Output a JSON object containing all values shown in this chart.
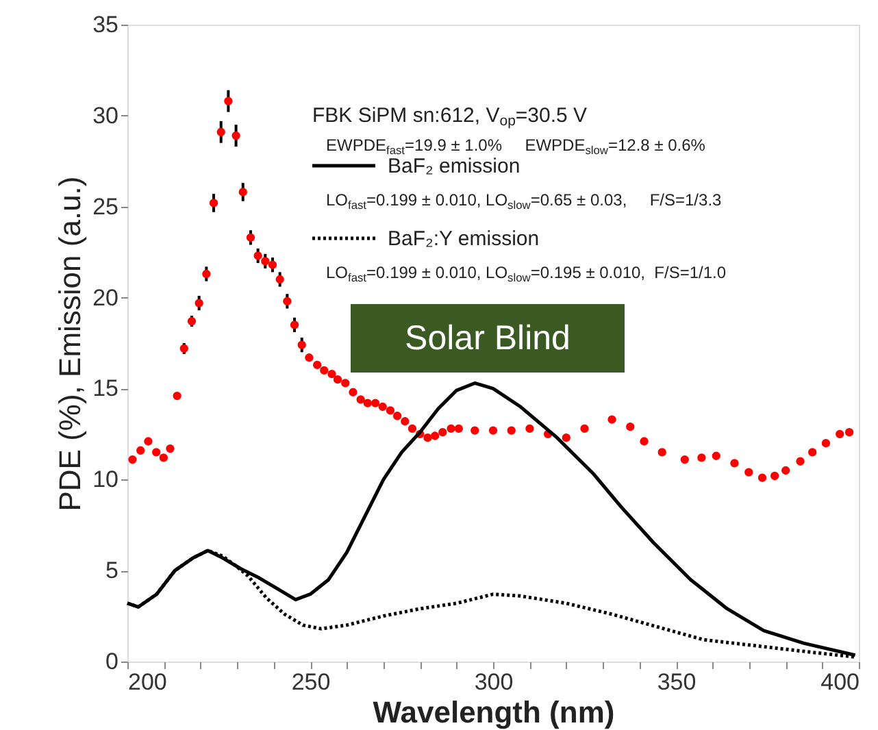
{
  "chart_data": {
    "type": "line",
    "xlabel": "Wavelength (nm)",
    "ylabel": "PDE (%), Emission (a.u.)",
    "xlim": [
      200,
      400
    ],
    "ylim": [
      0,
      35
    ],
    "xticks": [
      200,
      {
        "value": 210,
        "label": null
      },
      {
        "value": 220,
        "label": null
      },
      {
        "value": 230,
        "label": null
      },
      {
        "value": 240,
        "label": null
      },
      250,
      {
        "value": 260,
        "label": null
      },
      {
        "value": 270,
        "label": null
      },
      {
        "value": 280,
        "label": null
      },
      {
        "value": 290,
        "label": null
      },
      300,
      {
        "value": 310,
        "label": null
      },
      {
        "value": 320,
        "label": null
      },
      {
        "value": 330,
        "label": null
      },
      {
        "value": 340,
        "label": null
      },
      350,
      {
        "value": 360,
        "label": null
      },
      {
        "value": 370,
        "label": null
      },
      {
        "value": 380,
        "label": null
      },
      {
        "value": 390,
        "label": null
      },
      400
    ],
    "yticks": [
      0,
      5,
      10,
      15,
      20,
      25,
      30,
      35
    ],
    "grid": false,
    "legend": "top",
    "annotations": [
      "FBK SiPM sn:612, V$_{op}$=30.5 V",
      "EWPDE$_{fast}$=19.9 ± 1.0%     EWPDE$_{slow}$=12.8 ± 0.6%",
      "LO$_{fast}$=0.199 ± 0.010, LO$_{slow}$=0.65 ± 0.03,     F/S=1/3.3",
      "LO$_{fast}$=0.199 ± 0.010, LO$_{slow}$=0.195 ± 0.010,  F/S=1/1.0",
      "Solar Blind"
    ],
    "series": [
      {
        "type": "scatter",
        "marker": "circle",
        "color": "#ff0000",
        "x": [
          201.4,
          203.6,
          205.7,
          207.9,
          209.9,
          211.7,
          213.6,
          215.5,
          217.6,
          219.6,
          221.6,
          223.6,
          225.6,
          227.6,
          229.7,
          231.6,
          233.7,
          235.7,
          237.7,
          239.7,
          241.7,
          243.7,
          245.7,
          247.7,
          249.7,
          251.9,
          253.8,
          255.9,
          257.5,
          259.6,
          261.7,
          263.8,
          265.7,
          267.8,
          269.8,
          271.9,
          273.8,
          275.9,
          277.9,
          280.0,
          282.1,
          284.1,
          286.2,
          288.5,
          290.6,
          295,
          300,
          305,
          310,
          315,
          320,
          325,
          332.5,
          337.5,
          341.3,
          346.2,
          352.4,
          357,
          361,
          366,
          369.9,
          373.6,
          377,
          380,
          384,
          387.3,
          391,
          394.8,
          397.4
        ],
        "values": [
          11.1,
          11.6,
          12.1,
          11.5,
          11.2,
          11.7,
          14.6,
          17.2,
          18.7,
          19.7,
          21.3,
          25.2,
          29.1,
          30.8,
          28.9,
          25.8,
          23.3,
          22.3,
          22.0,
          21.8,
          21.0,
          19.8,
          18.5,
          17.4,
          16.7,
          16.3,
          16.0,
          15.8,
          15.5,
          15.3,
          14.8,
          14.4,
          14.2,
          14.2,
          14.0,
          13.8,
          13.5,
          13.2,
          12.8,
          12.5,
          12.3,
          12.4,
          12.6,
          12.8,
          12.8,
          12.7,
          12.7,
          12.7,
          12.8,
          12.5,
          12.3,
          12.8,
          13.3,
          12.9,
          12.1,
          11.5,
          11.1,
          11.2,
          11.3,
          10.9,
          10.4,
          10.1,
          10.2,
          10.5,
          11.0,
          11.5,
          12.0,
          12.5,
          12.6
        ],
        "errors": [
          null,
          null,
          null,
          null,
          null,
          null,
          null,
          0.3,
          0.3,
          0.4,
          0.4,
          0.5,
          0.6,
          0.6,
          0.6,
          0.5,
          0.4,
          0.4,
          0.4,
          0.4,
          0.4,
          0.4,
          0.4,
          0.4,
          null,
          null,
          null,
          null,
          null,
          null,
          null,
          null,
          null,
          null,
          null,
          null,
          null,
          null,
          null,
          null,
          null,
          null,
          null,
          null,
          null,
          null,
          null,
          null,
          null,
          null,
          null,
          null,
          null,
          null,
          null,
          null,
          null,
          null,
          null,
          null,
          null,
          null,
          null,
          null,
          null,
          null,
          null,
          null,
          null
        ]
      },
      {
        "name": "BaF₂ emission",
        "color": "#000000",
        "line_style": "solid",
        "x": [
          200,
          203,
          208,
          213,
          218,
          222,
          226,
          231,
          236,
          241,
          246,
          250,
          255,
          260,
          265,
          270,
          275,
          280,
          285,
          290,
          295,
          300,
          307.5,
          317.5,
          327.5,
          335,
          344,
          354,
          364,
          374,
          385,
          399
        ],
        "values": [
          3.2,
          3.0,
          3.7,
          5.0,
          5.7,
          6.1,
          5.7,
          5.1,
          4.6,
          4.0,
          3.4,
          3.7,
          4.5,
          6.0,
          8.0,
          10.0,
          11.5,
          12.6,
          13.9,
          14.9,
          15.3,
          15.0,
          14.0,
          12.3,
          10.3,
          8.5,
          6.5,
          4.5,
          2.9,
          1.7,
          1.0,
          0.35
        ]
      },
      {
        "name": "BaF₂:Y emission",
        "color": "#000000",
        "line_style": "dotted",
        "x": [
          200,
          203,
          208,
          213,
          218,
          222,
          226,
          230,
          233,
          238,
          243,
          248,
          253,
          260,
          270,
          280,
          290,
          300,
          307.5,
          320,
          332.5,
          345,
          357.5,
          372.5,
          387.5,
          399
        ],
        "values": [
          3.2,
          3.0,
          3.7,
          5.0,
          5.7,
          6.1,
          5.8,
          5.2,
          4.7,
          3.5,
          2.6,
          2.0,
          1.8,
          2.0,
          2.5,
          2.9,
          3.2,
          3.7,
          3.6,
          3.2,
          2.6,
          1.9,
          1.2,
          0.85,
          0.5,
          0.25
        ]
      }
    ]
  }
}
